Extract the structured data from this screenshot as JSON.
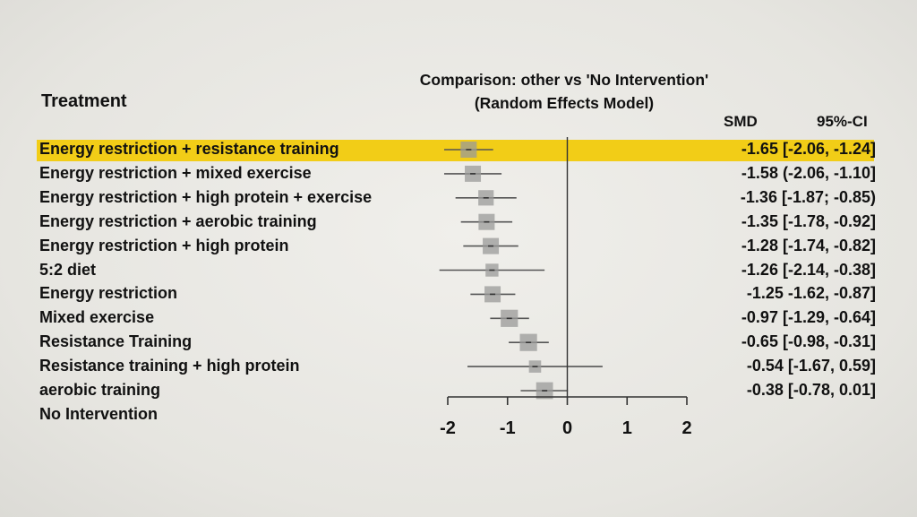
{
  "chart_data": {
    "type": "forest",
    "title": "Comparison: other vs 'No Intervention'",
    "subtitle": "(Random Effects Model)",
    "column_headers": {
      "treatment": "Treatment",
      "smd": "SMD",
      "ci": "95%-CI"
    },
    "xlim": [
      -2,
      2
    ],
    "x_ticks": [
      "-2",
      "-1",
      "0",
      "1",
      "2"
    ],
    "x_tick_values": [
      -2,
      -1,
      0,
      1,
      2
    ],
    "highlight_color": "#f2cd17",
    "rows": [
      {
        "label": "Energy restriction + resistance training",
        "estimate_text": "-1.65 [-2.06, -1.24]",
        "smd": -1.65,
        "lower": -2.06,
        "upper": -1.24,
        "weight": 1.0,
        "highlighted": true
      },
      {
        "label": "Energy restriction + mixed exercise",
        "estimate_text": "-1.58 (-2.06, -1.10]",
        "smd": -1.58,
        "lower": -2.06,
        "upper": -1.1,
        "weight": 1.0
      },
      {
        "label": "Energy restriction + high protein + exercise",
        "estimate_text": "-1.36 [-1.87; -0.85)",
        "smd": -1.36,
        "lower": -1.87,
        "upper": -0.85,
        "weight": 0.9
      },
      {
        "label": "Energy restriction + aerobic training",
        "estimate_text": "-1.35 [-1.78, -0.92]",
        "smd": -1.35,
        "lower": -1.78,
        "upper": -0.92,
        "weight": 1.0
      },
      {
        "label": "Energy restriction + high protein",
        "estimate_text": "-1.28 [-1.74, -0.82]",
        "smd": -1.28,
        "lower": -1.74,
        "upper": -0.82,
        "weight": 1.0
      },
      {
        "label": "5:2 diet",
        "estimate_text": "-1.26 [-2.14, -0.38]",
        "smd": -1.26,
        "lower": -2.14,
        "upper": -0.38,
        "weight": 0.55
      },
      {
        "label": "Energy restriction",
        "estimate_text": "-1.25 -1.62, -0.87]",
        "smd": -1.25,
        "lower": -1.62,
        "upper": -0.87,
        "weight": 1.0
      },
      {
        "label": "Mixed exercise",
        "estimate_text": "-0.97 [-1.29, -0.64]",
        "smd": -0.97,
        "lower": -1.29,
        "upper": -0.64,
        "weight": 1.15
      },
      {
        "label": "Resistance Training",
        "estimate_text": "-0.65 [-0.98, -0.31]",
        "smd": -0.65,
        "lower": -0.98,
        "upper": -0.31,
        "weight": 1.15
      },
      {
        "label": "Resistance training + high protein",
        "estimate_text": "-0.54 [-1.67, 0.59]",
        "smd": -0.54,
        "lower": -1.67,
        "upper": 0.59,
        "weight": 0.45
      },
      {
        "label": "aerobic training",
        "estimate_text": "-0.38 [-0.78, 0.01]",
        "smd": -0.38,
        "lower": -0.78,
        "upper": 0.01,
        "weight": 1.1
      },
      {
        "label": "No Intervention",
        "estimate_text": "",
        "smd": null,
        "lower": null,
        "upper": null,
        "weight": 0
      }
    ]
  }
}
